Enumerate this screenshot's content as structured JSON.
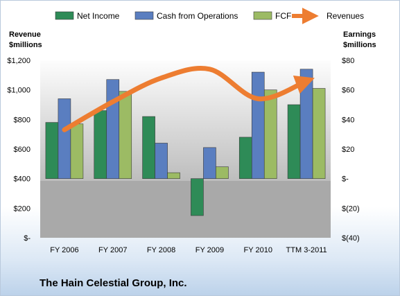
{
  "chart_data": {
    "type": "bar",
    "title": "The Hain Celestial Group, Inc.",
    "categories": [
      "FY 2006",
      "FY 2007",
      "FY 2008",
      "FY 2009",
      "FY 2010",
      "TTM 3-2011"
    ],
    "left_axis": {
      "label": [
        "Revenue",
        "$millions"
      ],
      "ticks": [
        "$1,200",
        "$1,000",
        "$800",
        "$600",
        "$400",
        "$200",
        "$-"
      ],
      "range": [
        0,
        1200
      ]
    },
    "right_axis": {
      "label": [
        "Earnings",
        "$millions"
      ],
      "ticks": [
        "$80",
        "$60",
        "$40",
        "$20",
        "$-",
        "$(20)",
        "$(40)"
      ],
      "range": [
        -40,
        80
      ]
    },
    "series": [
      {
        "name": "Net Income",
        "axis": "right",
        "color": "#2e8b57",
        "values": [
          38,
          46,
          42,
          -25,
          28,
          50
        ]
      },
      {
        "name": "Cash from Operations",
        "axis": "right",
        "color": "#5a7ec0",
        "values": [
          54,
          67,
          24,
          21,
          72,
          74
        ]
      },
      {
        "name": "FCF",
        "axis": "right",
        "color": "#9cbb64",
        "values": [
          37,
          59,
          4,
          8,
          60,
          61
        ]
      },
      {
        "name": "Revenues",
        "axis": "left",
        "type": "line",
        "color": "#ed7d31",
        "values": [
          730,
          920,
          1080,
          1140,
          940,
          1060
        ]
      }
    ],
    "legend_position": "top",
    "grid": false
  }
}
